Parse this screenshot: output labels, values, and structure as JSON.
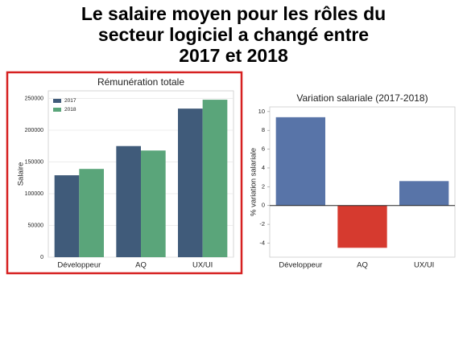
{
  "title": "Le salaire moyen pour les rôles du\nsecteur logiciel a changé entre\n2017 et 2018",
  "chart_data": [
    {
      "type": "bar",
      "title": "Rémunération totale",
      "ylabel": "Salaire",
      "categories": [
        "Développeur",
        "AQ",
        "UX/UI"
      ],
      "series": [
        {
          "name": "2017",
          "color": "#405b7a",
          "values": [
            129000,
            175000,
            234000
          ]
        },
        {
          "name": "2018",
          "color": "#5aa57a",
          "values": [
            139000,
            168000,
            248000
          ]
        }
      ],
      "ylim": [
        0,
        262000
      ],
      "yticks": [
        0,
        50000,
        100000,
        150000,
        200000,
        250000
      ],
      "grid": true,
      "legend": "upper-left"
    },
    {
      "type": "bar",
      "title": "Variation salariale (2017-2018)",
      "ylabel": "% variation salariale",
      "categories": [
        "Développeur",
        "AQ",
        "UX/UI"
      ],
      "values": [
        9.4,
        -4.5,
        2.6
      ],
      "colors": [
        "#5874a8",
        "#d63a2f",
        "#5874a8"
      ],
      "ylim": [
        -5.5,
        10.5
      ],
      "yticks": [
        -4,
        -2,
        0,
        2,
        4,
        6,
        8,
        10
      ],
      "grid": false
    }
  ]
}
